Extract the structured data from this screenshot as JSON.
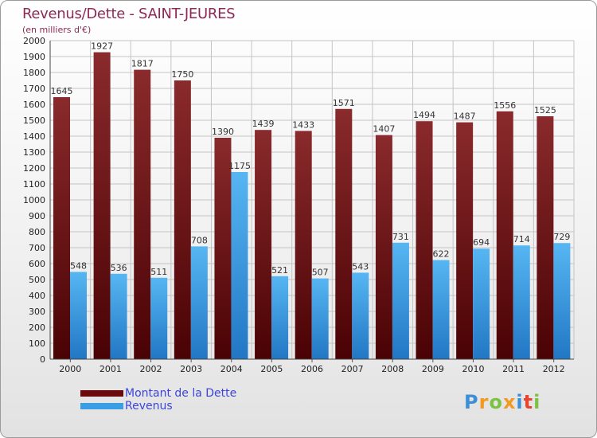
{
  "title": "Revenus/Dette - SAINT-JEURES",
  "subtitle": "(en milliers d'€)",
  "chart_data": {
    "type": "bar",
    "categories": [
      "2000",
      "2001",
      "2002",
      "2003",
      "2004",
      "2005",
      "2006",
      "2007",
      "2008",
      "2009",
      "2010",
      "2011",
      "2012"
    ],
    "series": [
      {
        "name": "Montant de la Dette",
        "color": "#7a1416",
        "values": [
          1645,
          1927,
          1817,
          1750,
          1390,
          1439,
          1433,
          1571,
          1407,
          1494,
          1487,
          1556,
          1525
        ]
      },
      {
        "name": "Revenus",
        "color": "#3a9ee4",
        "values": [
          548,
          536,
          511,
          708,
          1175,
          521,
          507,
          543,
          731,
          622,
          694,
          714,
          729
        ]
      }
    ],
    "ylim": [
      0,
      2000
    ],
    "yticks": [
      0,
      100,
      200,
      300,
      400,
      500,
      600,
      700,
      800,
      900,
      1000,
      1100,
      1200,
      1300,
      1400,
      1500,
      1600,
      1700,
      1800,
      1900,
      2000
    ],
    "grid": true,
    "legend_position": "bottom-left"
  },
  "legend": {
    "items": [
      {
        "label": "Montant de la Dette",
        "color": "#6b0a0c"
      },
      {
        "label": "Revenus",
        "color": "#3a9ee4"
      }
    ]
  },
  "logo": {
    "letters": [
      "P",
      "r",
      "o",
      "x",
      "i",
      "t",
      "i"
    ],
    "colors": [
      "#3a8fd8",
      "#f29a1f",
      "#7cc242",
      "#f29a1f",
      "#3a8fd8",
      "#e8452e",
      "#7cc242"
    ]
  }
}
